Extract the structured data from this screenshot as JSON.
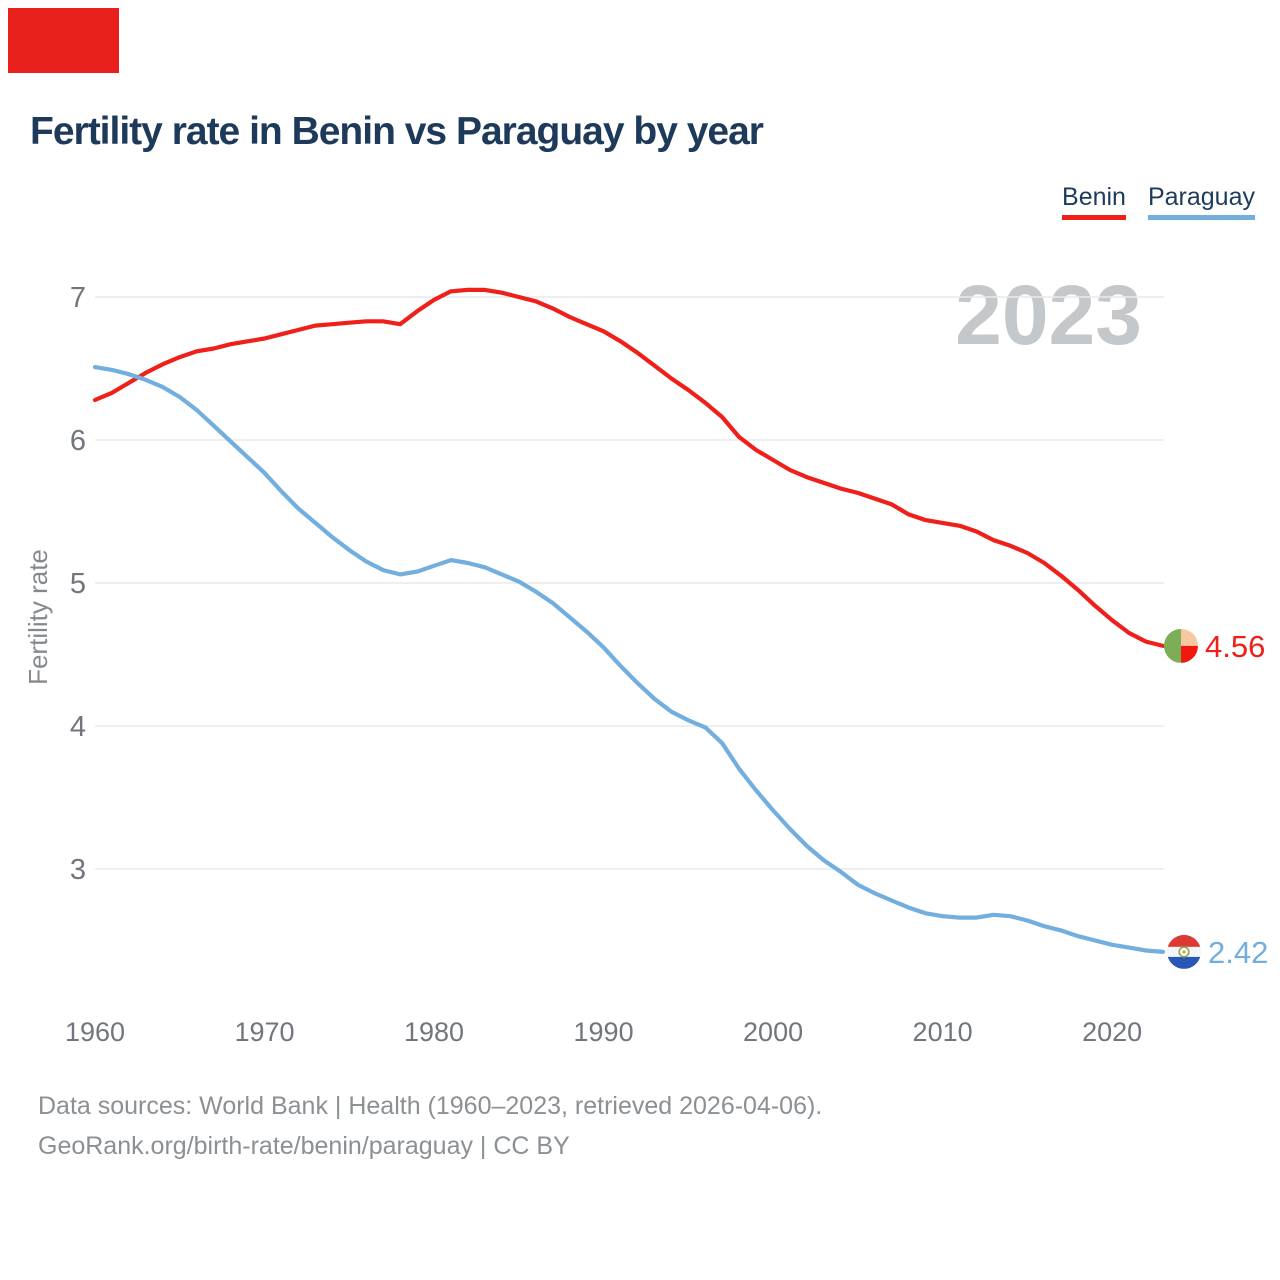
{
  "overlay_marker": {
    "color": "#e8211c"
  },
  "header": {
    "title": "Fertility rate in Benin vs Paraguay by year"
  },
  "legend": {
    "items": [
      {
        "label": "Benin",
        "color": "#ee2019"
      },
      {
        "label": "Paraguay",
        "color": "#72aede"
      }
    ]
  },
  "watermark": {
    "text": "2023",
    "color": "#c5c8cb"
  },
  "axes": {
    "y_title": "Fertility rate",
    "y_ticks": [
      7,
      6,
      5,
      4,
      3
    ],
    "x_ticks": [
      1960,
      1970,
      1980,
      1990,
      2000,
      2010,
      2020
    ],
    "tick_color": "#71767d",
    "grid_color": "#e9eaeb"
  },
  "end_labels": [
    {
      "series": "Benin",
      "value": "4.56",
      "color": "#ee2019",
      "flag_icon": "benin-flag"
    },
    {
      "series": "Paraguay",
      "value": "2.42",
      "color": "#72aede",
      "flag_icon": "paraguay-flag"
    }
  ],
  "footer": {
    "line1": "Data sources: World Bank | Health (1960–2023, retrieved 2026-04-06).",
    "line2": "GeoRank.org/birth-rate/benin/paraguay | CC BY"
  },
  "chart_data": {
    "type": "line",
    "title": "Fertility rate in Benin vs Paraguay by year",
    "xlabel": "",
    "ylabel": "Fertility rate",
    "xlim": [
      1960,
      2023
    ],
    "ylim": [
      2.3,
      7.2
    ],
    "grid": "horizontal",
    "legend_position": "top-right",
    "x": [
      1960,
      1961,
      1962,
      1963,
      1964,
      1965,
      1966,
      1967,
      1968,
      1969,
      1970,
      1971,
      1972,
      1973,
      1974,
      1975,
      1976,
      1977,
      1978,
      1979,
      1980,
      1981,
      1982,
      1983,
      1984,
      1985,
      1986,
      1987,
      1988,
      1989,
      1990,
      1991,
      1992,
      1993,
      1994,
      1995,
      1996,
      1997,
      1998,
      1999,
      2000,
      2001,
      2002,
      2003,
      2004,
      2005,
      2006,
      2007,
      2008,
      2009,
      2010,
      2011,
      2012,
      2013,
      2014,
      2015,
      2016,
      2017,
      2018,
      2019,
      2020,
      2021,
      2022,
      2023
    ],
    "series": [
      {
        "name": "Benin",
        "color": "#ee2019",
        "final_value": 4.56,
        "values": [
          6.28,
          6.33,
          6.4,
          6.47,
          6.53,
          6.58,
          6.62,
          6.64,
          6.67,
          6.69,
          6.71,
          6.74,
          6.77,
          6.8,
          6.81,
          6.82,
          6.83,
          6.83,
          6.81,
          6.9,
          6.98,
          7.04,
          7.05,
          7.05,
          7.03,
          7.0,
          6.97,
          6.92,
          6.86,
          6.81,
          6.76,
          6.69,
          6.61,
          6.52,
          6.43,
          6.35,
          6.26,
          6.16,
          6.02,
          5.93,
          5.86,
          5.79,
          5.74,
          5.7,
          5.66,
          5.63,
          5.59,
          5.55,
          5.48,
          5.44,
          5.42,
          5.4,
          5.36,
          5.3,
          5.26,
          5.21,
          5.14,
          5.05,
          4.95,
          4.84,
          4.74,
          4.65,
          4.59,
          4.56
        ]
      },
      {
        "name": "Paraguay",
        "color": "#72aede",
        "final_value": 2.42,
        "values": [
          6.51,
          6.49,
          6.46,
          6.42,
          6.37,
          6.3,
          6.21,
          6.1,
          5.99,
          5.88,
          5.77,
          5.64,
          5.52,
          5.42,
          5.32,
          5.23,
          5.15,
          5.09,
          5.06,
          5.08,
          5.12,
          5.16,
          5.14,
          5.11,
          5.06,
          5.01,
          4.94,
          4.86,
          4.76,
          4.66,
          4.55,
          4.42,
          4.3,
          4.19,
          4.1,
          4.04,
          3.99,
          3.88,
          3.7,
          3.55,
          3.41,
          3.28,
          3.16,
          3.06,
          2.98,
          2.89,
          2.83,
          2.78,
          2.73,
          2.69,
          2.67,
          2.66,
          2.66,
          2.68,
          2.67,
          2.64,
          2.6,
          2.57,
          2.53,
          2.5,
          2.47,
          2.45,
          2.43,
          2.42
        ]
      }
    ]
  }
}
